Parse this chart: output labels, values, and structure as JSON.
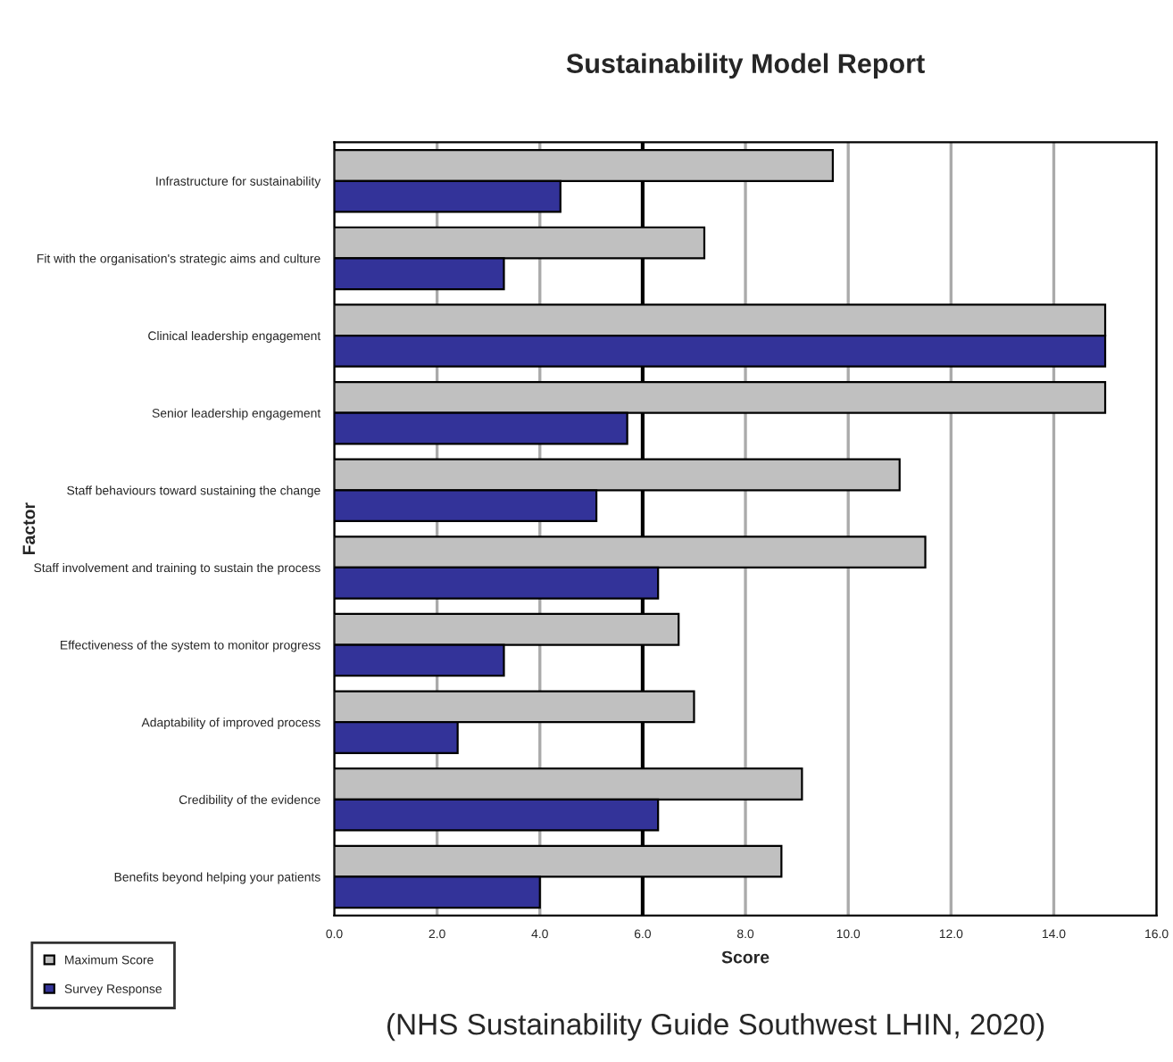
{
  "chart_data": {
    "type": "bar",
    "orientation": "horizontal",
    "title": "Sustainability Model Report",
    "xlabel": "Score",
    "ylabel": "Factor",
    "categories": [
      "Infrastructure for sustainability",
      "Fit with the organisation's strategic aims and culture",
      "Clinical leadership engagement",
      "Senior leadership engagement",
      "Staff behaviours toward sustaining the change",
      "Staff involvement and training to sustain the process",
      "Effectiveness of the system to monitor progress",
      "Adaptability of improved process",
      "Credibility of the evidence",
      "Benefits beyond helping your patients"
    ],
    "series": [
      {
        "name": "Maximum Score",
        "color": "#c0c0c0",
        "values": [
          9.7,
          7.2,
          15,
          15,
          11.0,
          11.5,
          6.7,
          7.0,
          9.1,
          8.7
        ]
      },
      {
        "name": "Survey Response",
        "color": "#333399",
        "values": [
          4.4,
          3.3,
          15,
          5.7,
          5.1,
          6.3,
          3.3,
          2.4,
          6.3,
          4.0
        ]
      }
    ],
    "xlim": [
      0,
      16
    ],
    "xticks": [
      {
        "value": 0,
        "label": "0.0"
      },
      {
        "value": 2,
        "label": "2.0"
      },
      {
        "value": 4,
        "label": "4.0"
      },
      {
        "value": 6,
        "label": "6.0"
      },
      {
        "value": 8,
        "label": "8.0"
      },
      {
        "value": 10,
        "label": "10.0"
      },
      {
        "value": 12,
        "label": "12.0"
      },
      {
        "value": 14,
        "label": "14.0"
      },
      {
        "value": 16,
        "label": "16.0"
      }
    ],
    "ref_lines": [
      {
        "axis": "x",
        "value": 6,
        "color": "#000000"
      }
    ],
    "grid": "x",
    "legend": "bottom left",
    "annotations": [
      "(NHS Sustainability Guide Southwest LHIN, 2020)"
    ]
  }
}
